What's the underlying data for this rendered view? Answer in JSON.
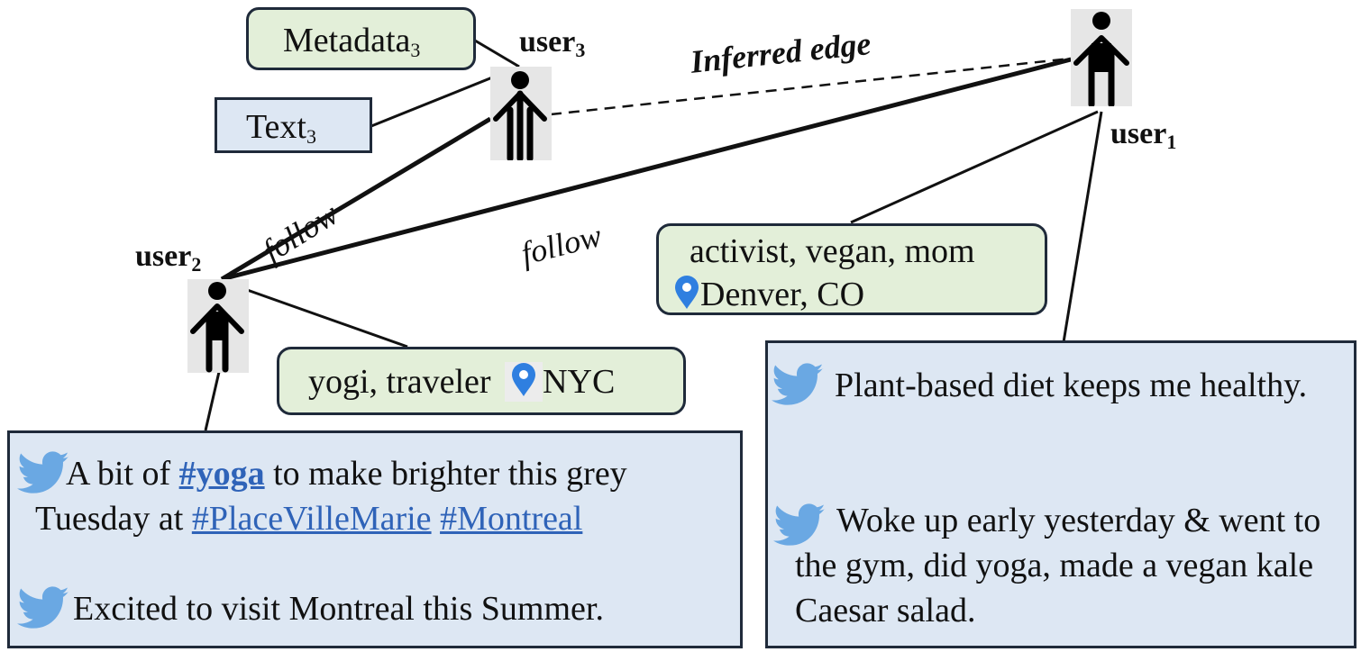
{
  "users": {
    "user1": {
      "name": "user",
      "sub": "1"
    },
    "user2": {
      "name": "user",
      "sub": "2"
    },
    "user3": {
      "name": "user",
      "sub": "3"
    }
  },
  "edges": {
    "inferred": "Inferred edge",
    "follow_2_3": "follow",
    "follow_2_1": "follow"
  },
  "user3_nodes": {
    "metadata": {
      "name": "Metadata",
      "sub": "3"
    },
    "text": {
      "name": "Text",
      "sub": "3"
    }
  },
  "user1_profile": {
    "bio": "activist, vegan, mom",
    "location": "Denver, CO"
  },
  "user2_profile": {
    "bio": "yogi, traveler",
    "location": "NYC"
  },
  "user1_tweets": [
    {
      "text": "Plant-based diet keeps me healthy."
    },
    {
      "text": "Woke up early yesterday & went to the gym, did yoga, made a vegan kale Caesar salad."
    }
  ],
  "user2_tweets": [
    {
      "pre": "A bit of ",
      "tag1": "#yoga",
      "mid": " to make brighter this grey Tuesday at ",
      "tag2": "#PlaceVilleMarie",
      "tag3": "#Montreal"
    },
    {
      "text": "Excited to visit Montreal this Summer."
    }
  ],
  "colors": {
    "green_box": "#e3efd9",
    "blue_box": "#dde7f3",
    "hashtag": "#2f63b8",
    "twitter_bird": "#6aa8e3",
    "pin": "#2f7fe0"
  }
}
